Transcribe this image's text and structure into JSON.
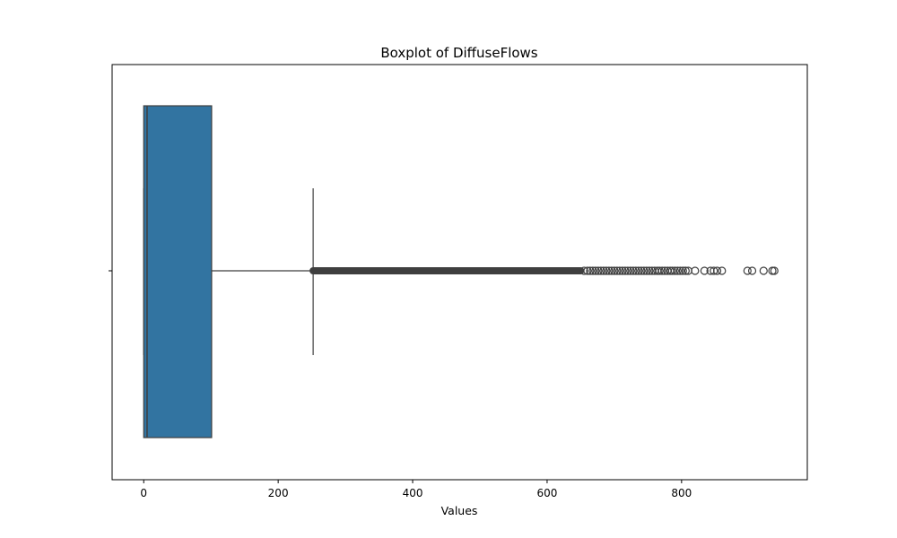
{
  "chart_data": {
    "type": "boxplot",
    "title": "Boxplot of DiffuseFlows",
    "xlabel": "Values",
    "ylabel": "",
    "orientation": "horizontal",
    "xlim": [
      -47,
      987
    ],
    "xticks": [
      0,
      200,
      400,
      600,
      800
    ],
    "xtick_labels": [
      "0",
      "200",
      "400",
      "600",
      "800"
    ],
    "grid": false,
    "box": {
      "min": 0,
      "q1": 0,
      "median": 5,
      "q3": 101,
      "whisker_low": 0,
      "whisker_high": 252
    },
    "box_color": "#3274a1",
    "line_color": "#3f3f3f",
    "outlier_color": "#3f3f3f",
    "outliers_dense_range": [
      252,
      650
    ],
    "outliers": [
      655,
      660,
      664,
      668,
      672,
      676,
      680,
      684,
      688,
      692,
      696,
      700,
      704,
      708,
      712,
      716,
      720,
      724,
      728,
      732,
      736,
      740,
      744,
      748,
      752,
      756,
      760,
      764,
      767,
      771,
      775,
      779,
      783,
      786,
      790,
      794,
      798,
      802,
      806,
      810,
      820,
      834,
      843,
      848,
      853,
      860,
      898,
      905,
      922,
      935,
      938
    ]
  }
}
